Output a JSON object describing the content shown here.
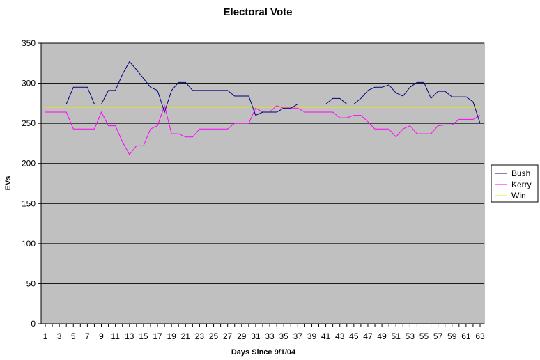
{
  "chart_data": {
    "type": "line",
    "title": "Electoral Vote",
    "xlabel": "Days Since 9/1/04",
    "ylabel": "EVs",
    "ylim": [
      0,
      350
    ],
    "yticks": [
      0,
      50,
      100,
      150,
      200,
      250,
      300,
      350
    ],
    "x": [
      1,
      2,
      3,
      4,
      5,
      6,
      7,
      8,
      9,
      10,
      11,
      12,
      13,
      14,
      15,
      16,
      17,
      18,
      19,
      20,
      21,
      22,
      23,
      24,
      25,
      26,
      27,
      28,
      29,
      30,
      31,
      32,
      33,
      34,
      35,
      36,
      37,
      38,
      39,
      40,
      41,
      42,
      43,
      44,
      45,
      46,
      47,
      48,
      49,
      50,
      51,
      52,
      53,
      54,
      55,
      56,
      57,
      58,
      59,
      60,
      61,
      62,
      63
    ],
    "xticks": [
      1,
      3,
      5,
      7,
      9,
      11,
      13,
      15,
      17,
      19,
      21,
      23,
      25,
      27,
      29,
      31,
      33,
      35,
      37,
      39,
      41,
      43,
      45,
      47,
      49,
      51,
      53,
      55,
      57,
      59,
      61,
      63
    ],
    "grid": true,
    "legend_position": "right",
    "plot_background": "#c0c0c0",
    "series": [
      {
        "name": "Bush",
        "color": "#000080",
        "values": [
          274,
          274,
          274,
          274,
          295,
          295,
          295,
          274,
          274,
          291,
          291,
          311,
          327,
          317,
          306,
          295,
          291,
          264,
          291,
          301,
          301,
          291,
          291,
          291,
          291,
          291,
          291,
          284,
          284,
          284,
          260,
          264,
          264,
          264,
          269,
          269,
          274,
          274,
          274,
          274,
          274,
          281,
          281,
          274,
          274,
          281,
          291,
          295,
          295,
          298,
          288,
          284,
          295,
          301,
          301,
          281,
          290,
          290,
          283,
          283,
          283,
          277,
          250
        ]
      },
      {
        "name": "Kerry",
        "color": "#ff00ff",
        "values": [
          264,
          264,
          264,
          264,
          243,
          243,
          243,
          243,
          264,
          247,
          247,
          227,
          211,
          222,
          222,
          243,
          247,
          272,
          237,
          237,
          233,
          233,
          243,
          243,
          243,
          243,
          243,
          250,
          250,
          250,
          269,
          264,
          264,
          272,
          269,
          269,
          269,
          264,
          264,
          264,
          264,
          264,
          257,
          257,
          260,
          260,
          252,
          243,
          243,
          243,
          233,
          243,
          247,
          237,
          237,
          237,
          247,
          248,
          248,
          255,
          255,
          255,
          260
        ]
      },
      {
        "name": "Win",
        "color": "#e8e800",
        "values": [
          270,
          270,
          270,
          270,
          270,
          270,
          270,
          270,
          270,
          270,
          270,
          270,
          270,
          270,
          270,
          270,
          270,
          270,
          270,
          270,
          270,
          270,
          270,
          270,
          270,
          270,
          270,
          270,
          270,
          270,
          270,
          270,
          270,
          270,
          270,
          270,
          270,
          270,
          270,
          270,
          270,
          270,
          270,
          270,
          270,
          270,
          270,
          270,
          270,
          270,
          270,
          270,
          270,
          270,
          270,
          270,
          270,
          270,
          270,
          270,
          270,
          270,
          270
        ]
      }
    ]
  }
}
